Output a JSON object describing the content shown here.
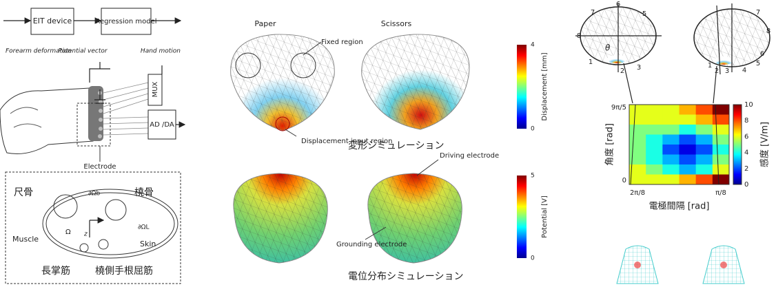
{
  "pipeline": {
    "blocks": [
      "EIT device",
      "Regression model"
    ],
    "signals": [
      "Forearm deformation",
      "Potential vector",
      "Hand motion"
    ]
  },
  "hardware": {
    "mux": "MUX",
    "adda": "AD /DA",
    "electrode": "Electrode"
  },
  "cross_section": {
    "bone_left": "尺骨",
    "bone_right": "橈骨",
    "boundary_top": "∂Ωb",
    "boundary_right": "∂ΩL",
    "muscle": "Muscle",
    "domain": "Ω",
    "skin": "Skin",
    "axis": "z",
    "tendon_left": "長掌筋",
    "tendon_right": "橈側手根屈筋"
  },
  "simulation": {
    "columns": [
      "Paper",
      "Scissors"
    ],
    "fixed_region": "Fixed region",
    "displacement_input": "Displacement input region",
    "deform_caption": "変形シミュレーション",
    "driving": "Driving electrode",
    "grounding": "Grounding electrode",
    "potential_caption": "電位分布シミュレーション",
    "displacement_scale": {
      "label": "Displacement [mm]",
      "lim": [
        0,
        4
      ]
    },
    "potential_scale": {
      "label": "Potential [V]",
      "lim": [
        0,
        5
      ]
    }
  },
  "sensitivity": {
    "electrodes_left": [
      "1",
      "2",
      "3",
      "5",
      "6",
      "7",
      "8"
    ],
    "electrodes_right": [
      "1",
      "2",
      "3",
      "4",
      "5",
      "6",
      "7",
      "8"
    ],
    "angle_symbol": "θ",
    "heatmap": {
      "values": [
        [
          6,
          6,
          6,
          7,
          8,
          10
        ],
        [
          6,
          6,
          6,
          6,
          7,
          8
        ],
        [
          5,
          5,
          5,
          4,
          5,
          6
        ],
        [
          5,
          4,
          3,
          2,
          3,
          5
        ],
        [
          5,
          4,
          2,
          1,
          2,
          4
        ],
        [
          5,
          4,
          3,
          2,
          3,
          5
        ],
        [
          6,
          5,
          4,
          3,
          4,
          6
        ],
        [
          6,
          6,
          6,
          7,
          8,
          10
        ]
      ],
      "ytick_labels": [
        "9π/5",
        "0"
      ],
      "xtick_labels": [
        "2π/8",
        "π/8"
      ],
      "ylabel": "角度 [rad]",
      "xlabel": "電極間隔 [rad]",
      "clabel": "感度 [V/m]",
      "clim": [
        0,
        10
      ],
      "cticks": [
        0,
        2,
        4,
        6,
        8,
        10
      ]
    }
  }
}
